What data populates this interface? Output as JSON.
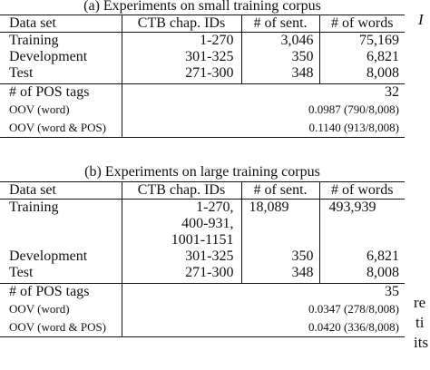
{
  "table_a": {
    "caption": "(a) Experiments on small training corpus",
    "headers": [
      "Data set",
      "CTB chap. IDs",
      "# of sent.",
      "# of words"
    ],
    "rows": [
      {
        "set": "Training",
        "ids": "1-270",
        "sent": "3,046",
        "words": "75,169"
      },
      {
        "set": "Development",
        "ids": "301-325",
        "sent": "350",
        "words": "6,821"
      },
      {
        "set": "Test",
        "ids": "271-300",
        "sent": "348",
        "words": "8,008"
      }
    ],
    "stats": [
      {
        "label": "# of POS tags",
        "value": "32"
      },
      {
        "label": "OOV (word)",
        "value": "0.0987 (790/8,008)"
      },
      {
        "label": "OOV (word & POS)",
        "value": "0.1140 (913/8,008)"
      }
    ]
  },
  "table_b": {
    "caption": "(b) Experiments on large training corpus",
    "headers": [
      "Data set",
      "CTB chap. IDs",
      "# of sent.",
      "# of words"
    ],
    "training": {
      "set": "Training",
      "ids": [
        "1-270,",
        "400-931,",
        "1001-1151"
      ],
      "sent": "18,089",
      "words": "493,939"
    },
    "rows": [
      {
        "set": "Development",
        "ids": "301-325",
        "sent": "350",
        "words": "6,821"
      },
      {
        "set": "Test",
        "ids": "271-300",
        "sent": "348",
        "words": "8,008"
      }
    ],
    "stats": [
      {
        "label": "# of POS tags",
        "value": "35"
      },
      {
        "label": "OOV (word)",
        "value": "0.0347 (278/8,008)"
      },
      {
        "label": "OOV (word & POS)",
        "value": "0.0420 (336/8,008)"
      }
    ]
  },
  "fragments": [
    "I",
    "re",
    "ti",
    "its"
  ]
}
